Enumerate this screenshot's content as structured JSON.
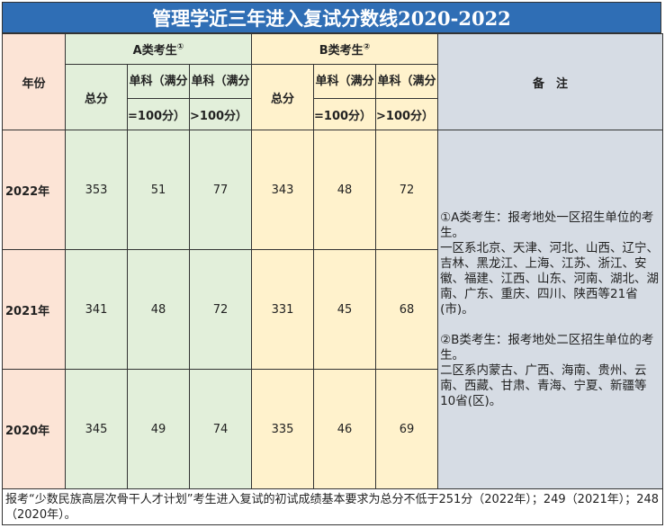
{
  "title": "管理学近三年进入复试分数线2020-2022",
  "headers": {
    "year": "年份",
    "groupA": "A类考生",
    "groupA_mark": "①",
    "groupB": "B类考生",
    "groupB_mark": "②",
    "total": "总分",
    "single": "单科（满分",
    "eq100": "=100分）",
    "gt100": ">100分）",
    "notes": "备　注"
  },
  "rows": [
    {
      "year": "2022年",
      "a_total": "353",
      "a_eq100": "51",
      "a_gt100": "77",
      "b_total": "343",
      "b_eq100": "48",
      "b_gt100": "72"
    },
    {
      "year": "2021年",
      "a_total": "341",
      "a_eq100": "48",
      "a_gt100": "72",
      "b_total": "331",
      "b_eq100": "45",
      "b_gt100": "68"
    },
    {
      "year": "2020年",
      "a_total": "345",
      "a_eq100": "49",
      "a_gt100": "74",
      "b_total": "335",
      "b_eq100": "46",
      "b_gt100": "69"
    }
  ],
  "notes": {
    "a1": "①A类考生：报考地处一区招生单位的考生。",
    "a2": "一区系北京、天津、河北、山西、辽宁、吉林、黑龙江、上海、江苏、浙江、安徽、福建、江西、山东、河南、湖北、湖南、广东、重庆、四川、陕西等21省(市)。",
    "b1": "②B类考生：报考地处二区招生单位的考生。",
    "b2": "二区系内蒙古、广西、海南、贵州、云南、西藏、甘肃、青海、宁夏、新疆等10省(区)。"
  },
  "footer": "报考“少数民族高层次骨干人才计划”考生进入复试的初试成绩基本要求为总分不低于251分（2022年）；249（2021年）；248（2020年）。",
  "colors": {
    "title_bg": "#2f6eb5",
    "year_col": "#fce4d6",
    "groupA": "#e2efda",
    "groupB": "#fff2cc",
    "notes": "#d6dce4"
  }
}
